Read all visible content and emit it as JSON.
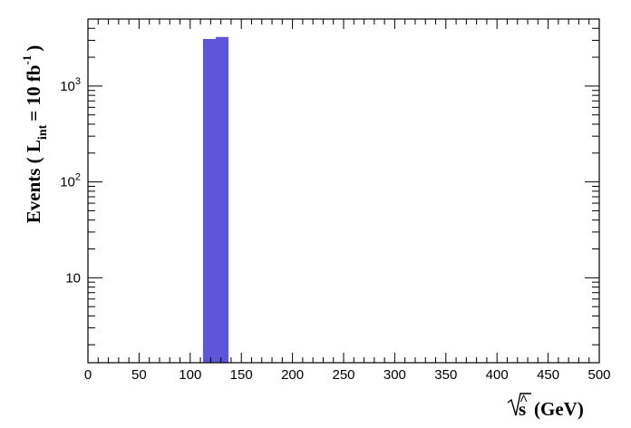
{
  "chart_data": {
    "type": "bar",
    "title": "",
    "xlabel": "(GeV)",
    "xlabel_symbol": "s",
    "ylabel": "Events ( L",
    "ylabel_sub": "int",
    "ylabel_mid": "= 10 fb",
    "ylabel_sup": "-1",
    "ylabel_end": ")",
    "x_scale": "linear",
    "y_scale": "log",
    "xlim": [
      0,
      500
    ],
    "ylim": [
      1.3,
      5000
    ],
    "x_ticks": [
      0,
      50,
      100,
      150,
      200,
      250,
      300,
      350,
      400,
      450,
      500
    ],
    "y_ticks": [
      {
        "value": 10,
        "base": "10",
        "exp": ""
      },
      {
        "value": 100,
        "base": "10",
        "exp": "2"
      },
      {
        "value": 1000,
        "base": "10",
        "exp": "3"
      }
    ],
    "bins": [
      {
        "x0": 112.5,
        "x1": 125,
        "value": 3100
      },
      {
        "x0": 125,
        "x1": 137.5,
        "value": 3250
      }
    ],
    "bar_color": "#5c57d9",
    "grid": false
  }
}
